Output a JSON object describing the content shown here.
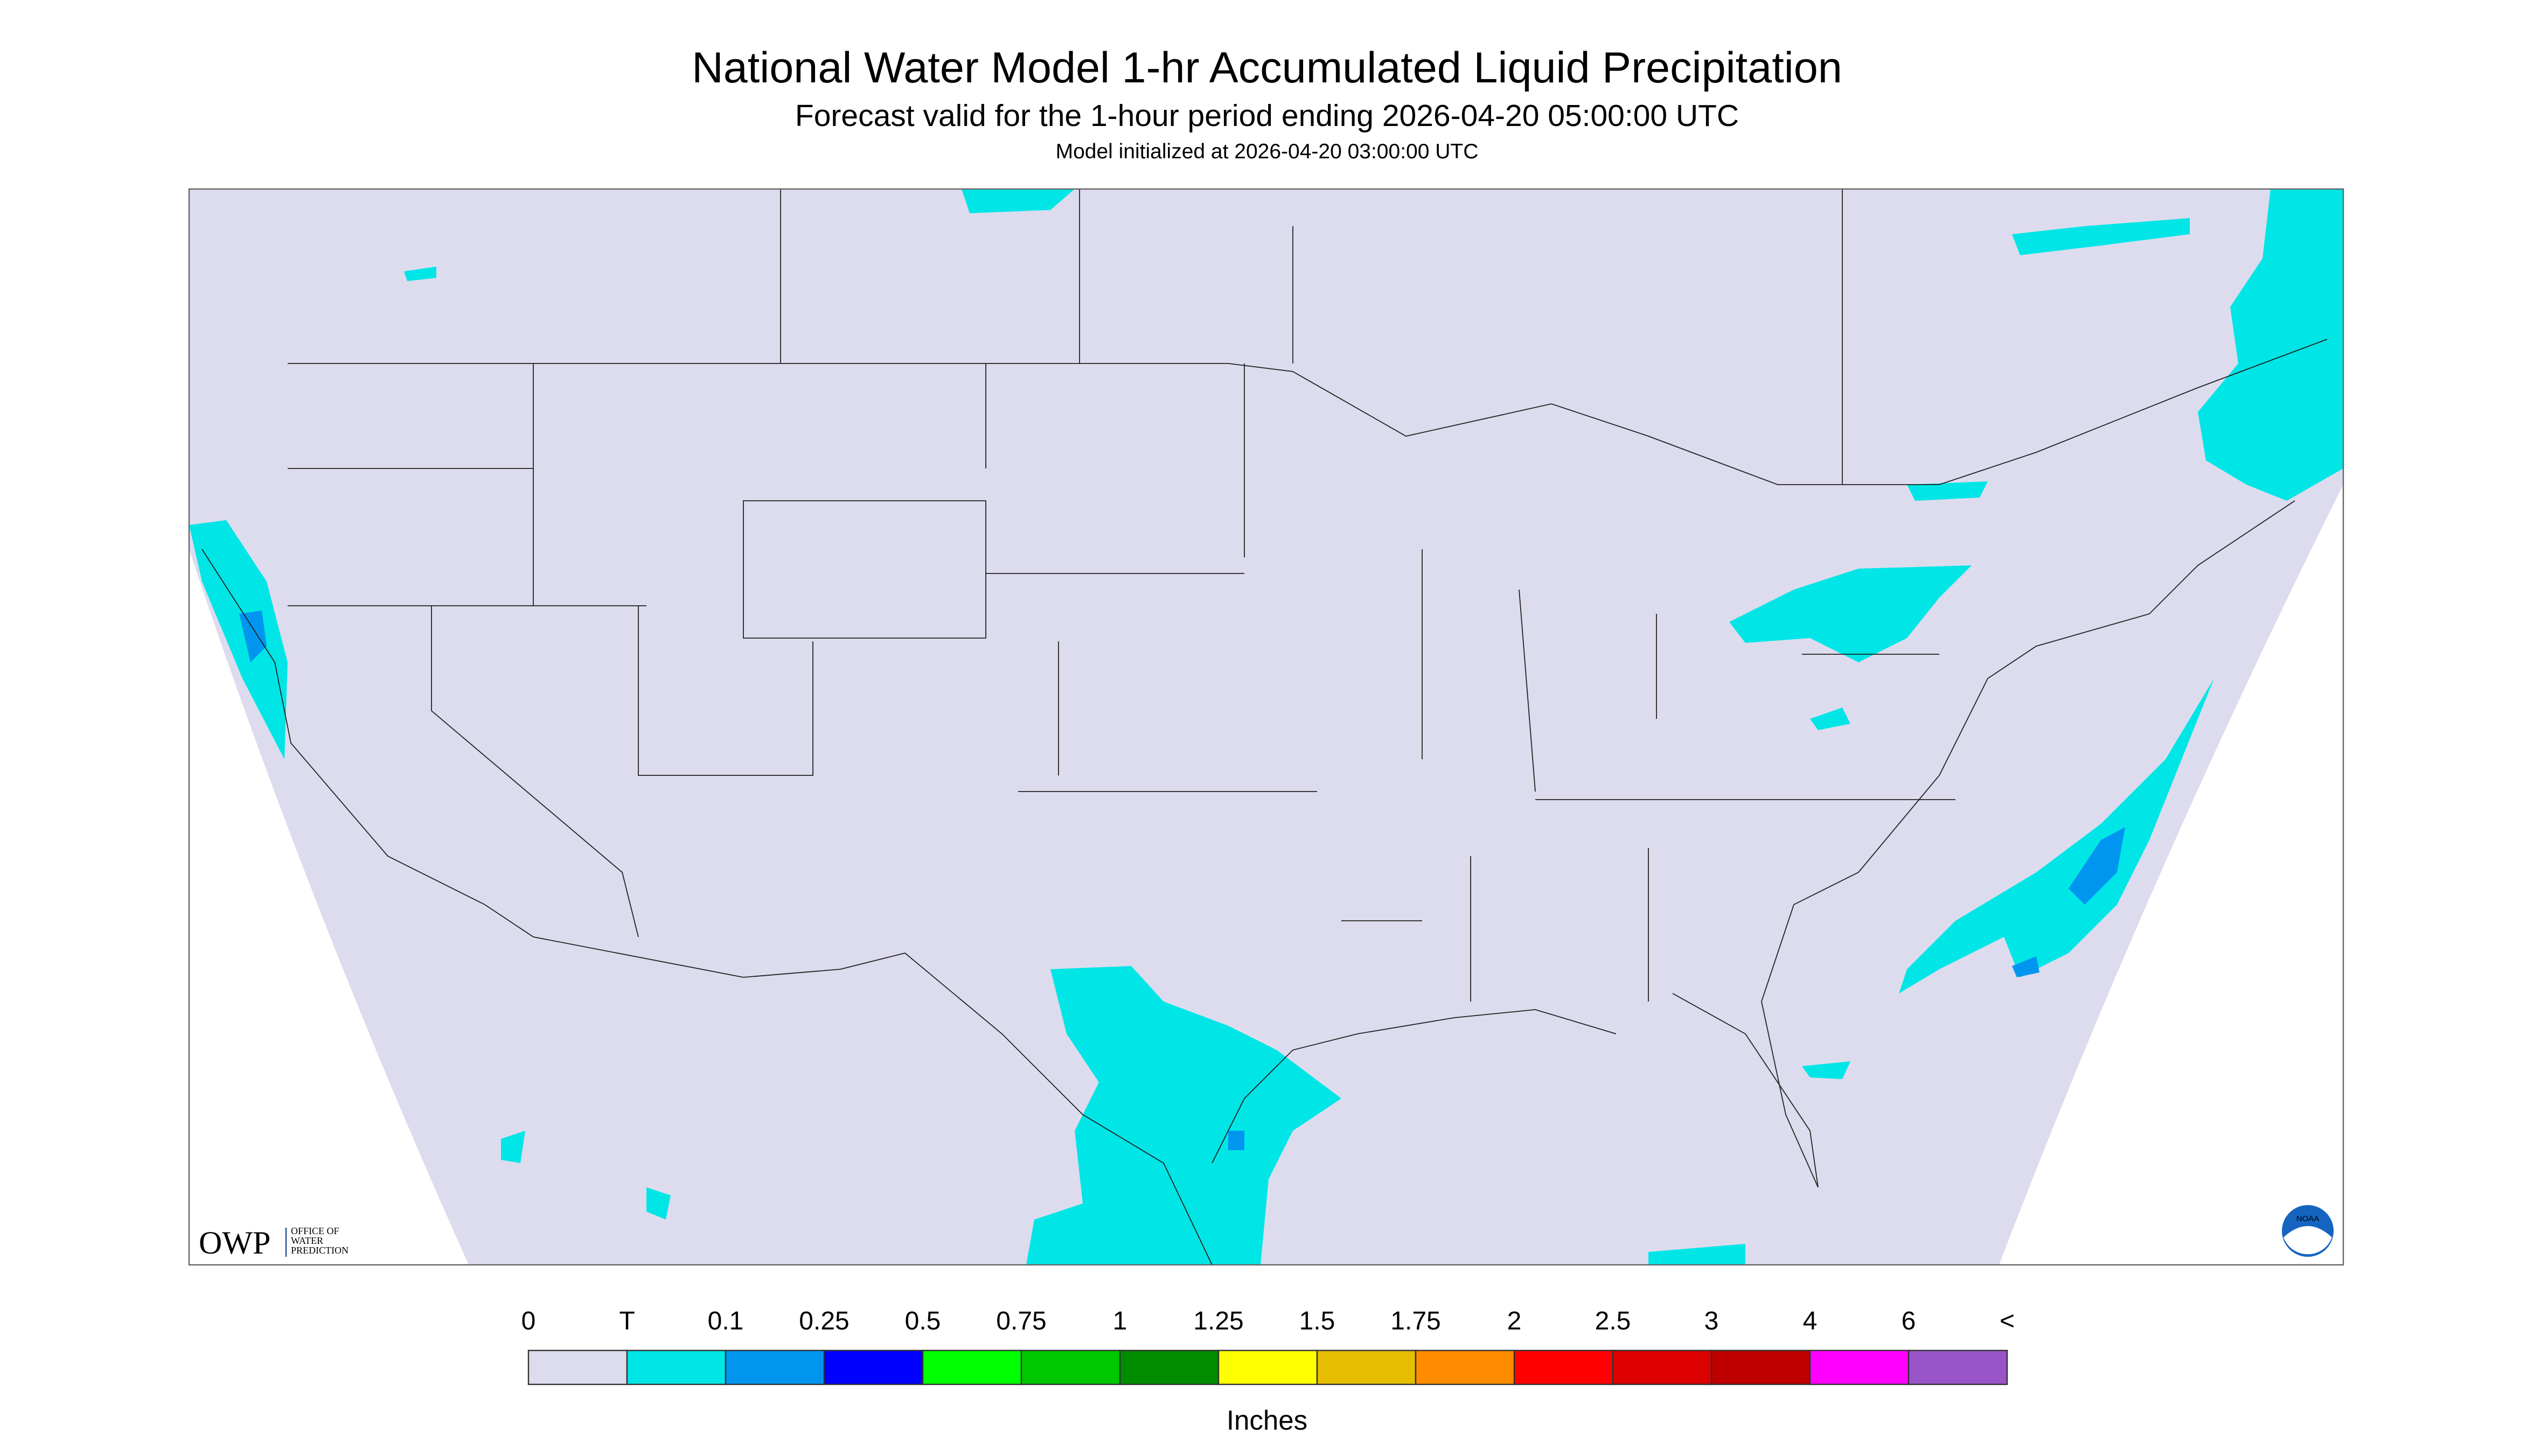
{
  "header": {
    "title": "National Water Model 1-hr Accumulated Liquid Precipitation",
    "subtitle": "Forecast valid for the 1-hour period ending 2026-04-20 05:00:00 UTC",
    "note": "Model initialized at 2026-04-20 03:00:00 UTC"
  },
  "logos": {
    "owp": "OWP",
    "owp_lines": [
      "OFFICE OF",
      "WATER",
      "PREDICTION"
    ],
    "noaa": "NOAA"
  },
  "colorbar": {
    "labels": [
      "0",
      "T",
      "0.1",
      "0.25",
      "0.5",
      "0.75",
      "1",
      "1.25",
      "1.5",
      "1.75",
      "2",
      "2.5",
      "3",
      "4",
      "6",
      "<"
    ],
    "colors": [
      "#dcdcee",
      "#00e6e6",
      "#0096f0",
      "#0000ff",
      "#00ff00",
      "#00c800",
      "#008c00",
      "#ffff00",
      "#e6be00",
      "#ff8c00",
      "#ff0000",
      "#dc0000",
      "#be0000",
      "#ff00ff",
      "#9955c8"
    ],
    "unit": "Inches"
  }
}
